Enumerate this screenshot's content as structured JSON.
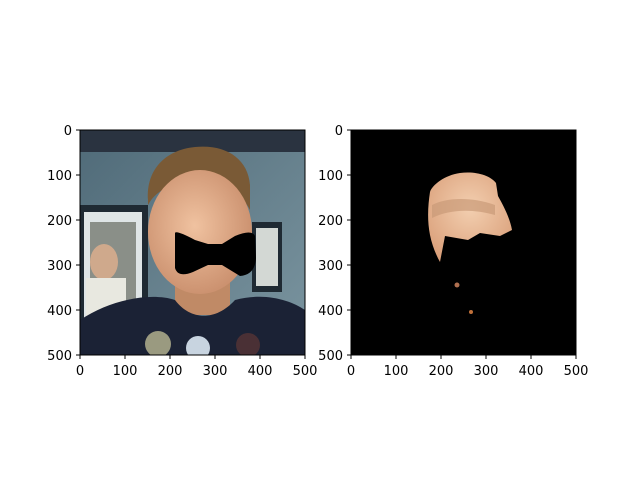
{
  "figure": {
    "panels": [
      {
        "name": "left-panel",
        "content": "photo of man's face with black bow-tie shaped mask",
        "x_ticks": [
          "0",
          "100",
          "200",
          "300",
          "400",
          "500"
        ],
        "y_ticks": [
          "0",
          "100",
          "200",
          "300",
          "400",
          "500"
        ]
      },
      {
        "name": "right-panel",
        "content": "segmented skin region on black background",
        "x_ticks": [
          "0",
          "100",
          "200",
          "300",
          "400",
          "500"
        ],
        "y_ticks": [
          "0",
          "100",
          "200",
          "300",
          "400",
          "500"
        ]
      }
    ],
    "colors": {
      "axes": "#000000",
      "mask": "#000000",
      "skin": "#e8b896",
      "background_right": "#000000",
      "wall": "#5a7080",
      "shirt": "#1b2235"
    }
  }
}
